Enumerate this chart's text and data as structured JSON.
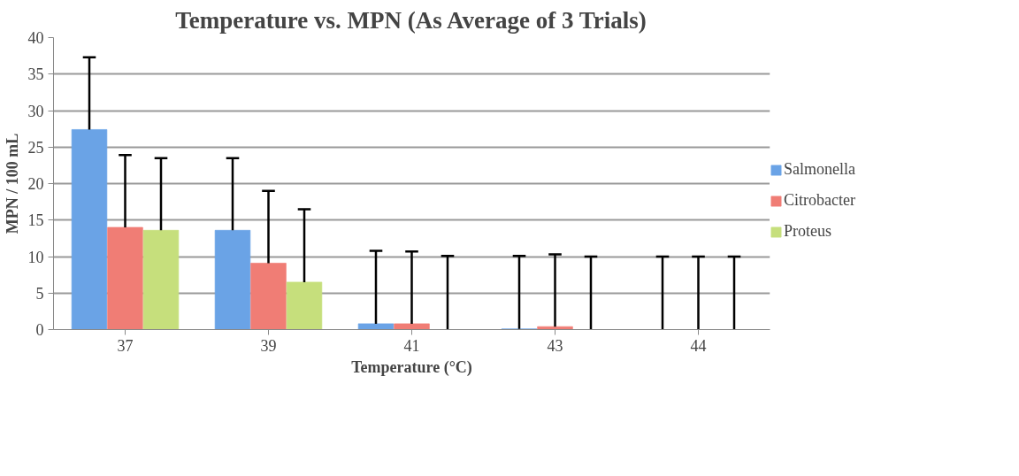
{
  "chart_data": {
    "type": "bar",
    "title": "Temperature vs. MPN (As Average of 3 Trials)",
    "xlabel": "Temperature (°C)",
    "ylabel": "MPN / 100 mL",
    "categories": [
      "37",
      "39",
      "41",
      "43",
      "44"
    ],
    "series": [
      {
        "name": "Salmonella",
        "color": "#6aa3e6",
        "values": [
          27.4,
          13.6,
          0.8,
          0.1,
          0
        ],
        "errors": [
          [
            27.4,
            37.3
          ],
          [
            13.6,
            23.5
          ],
          [
            0.8,
            10.8
          ],
          [
            0.1,
            10.1
          ],
          [
            0,
            10
          ]
        ]
      },
      {
        "name": "Citrobacter",
        "color": "#f07d75",
        "values": [
          14.0,
          9.1,
          0.8,
          0.4,
          0
        ],
        "errors": [
          [
            14.0,
            23.9
          ],
          [
            9.1,
            19.0
          ],
          [
            0.8,
            10.7
          ],
          [
            0.4,
            10.3
          ],
          [
            0,
            10
          ]
        ]
      },
      {
        "name": "Proteus",
        "color": "#c6df7c",
        "values": [
          13.6,
          6.5,
          0,
          0,
          0
        ],
        "errors": [
          [
            13.6,
            23.5
          ],
          [
            6.5,
            16.5
          ],
          [
            0,
            10.1
          ],
          [
            0,
            10
          ],
          [
            0,
            10
          ]
        ]
      }
    ],
    "ylim": [
      0,
      40
    ],
    "yticks": [
      0,
      5,
      10,
      15,
      20,
      25,
      30,
      35,
      40
    ],
    "grid": "y",
    "legend": "right"
  }
}
